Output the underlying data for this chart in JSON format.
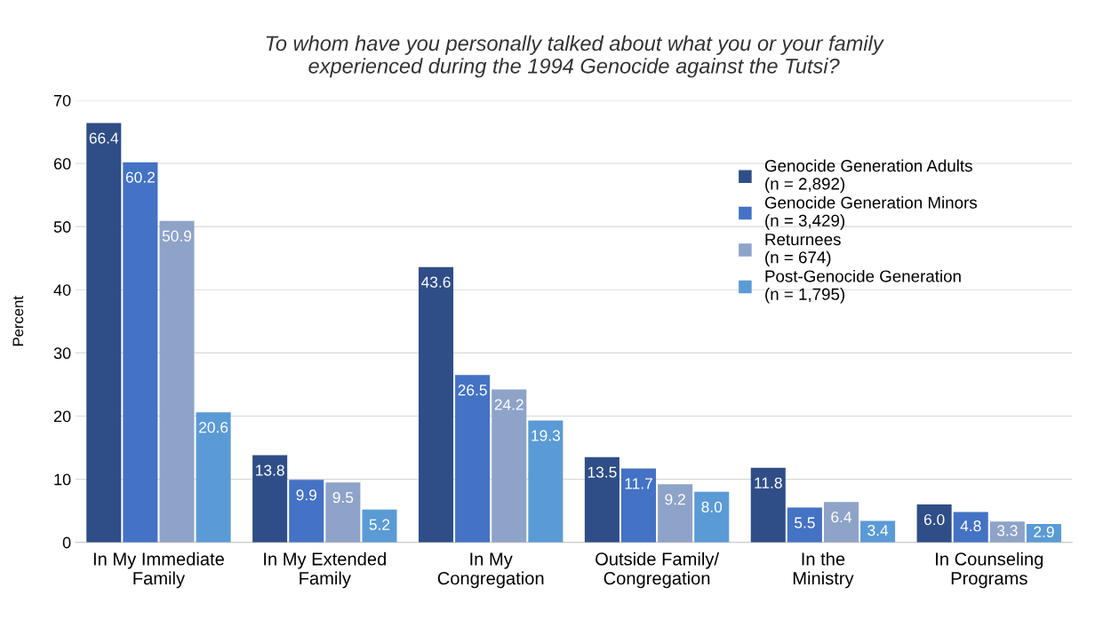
{
  "chart_data": {
    "type": "bar",
    "title": "To whom have you personally talked about what you or your family\nexperienced during the 1994 Genocide against the Tutsi?",
    "ylabel": "Percent",
    "categories": [
      "In My Immediate\nFamily",
      "In My Extended\nFamily",
      "In My\nCongregation",
      "Outside Family/\nCongregation",
      "In the\nMinistry",
      "In Counseling\nPrograms"
    ],
    "series": [
      {
        "name": "Genocide Generation Adults\n(n = 2,892)",
        "color": "#2f4e87",
        "values": [
          66.4,
          13.8,
          43.6,
          13.5,
          11.8,
          6.0
        ],
        "value_labels": [
          "66.4",
          "13.8",
          "43.6",
          "13.5",
          "11.8",
          "6.0"
        ]
      },
      {
        "name": "Genocide Generation Minors\n(n = 3,429)",
        "color": "#4472c4",
        "values": [
          60.2,
          9.9,
          26.5,
          11.7,
          5.5,
          4.8
        ],
        "value_labels": [
          "60.2",
          "9.9",
          "26.5",
          "11.7",
          "5.5",
          "4.8"
        ]
      },
      {
        "name": "Returnees\n(n = 674)",
        "color": "#8ea3c8",
        "values": [
          50.9,
          9.5,
          24.2,
          9.2,
          6.4,
          3.3
        ],
        "value_labels": [
          "50.9",
          "9.5",
          "24.2",
          "9.2",
          "6.4",
          "3.3"
        ]
      },
      {
        "name": "Post-Genocide Generation\n(n = 1,795)",
        "color": "#5b9bd5",
        "values": [
          20.6,
          5.2,
          19.3,
          8.0,
          3.4,
          2.9
        ],
        "value_labels": [
          "20.6",
          "5.2",
          "19.3",
          "8.0",
          "3.4",
          "2.9"
        ]
      }
    ],
    "ylim": [
      0,
      70
    ],
    "yticks": [
      0,
      10,
      20,
      30,
      40,
      50,
      60,
      70
    ],
    "grid": "y",
    "legend": "top right"
  }
}
